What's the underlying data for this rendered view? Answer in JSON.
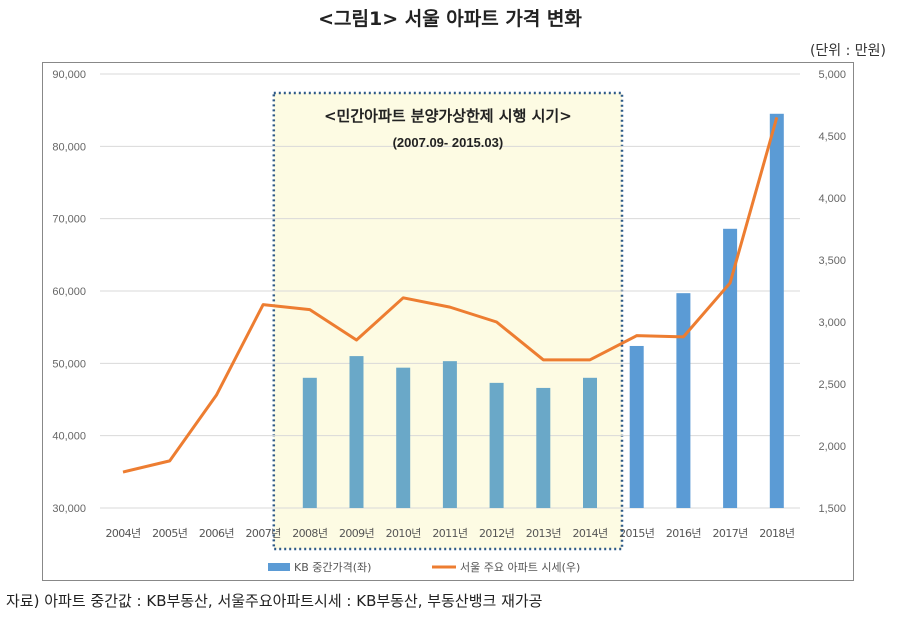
{
  "title": "<그림1> 서울 아파트 가격 변화",
  "unit": "(단위 : 만원)",
  "source": "자료) 아파트 중간값 : KB부동산, 서울주요아파트시세 : KB부동산, 부동산뱅크 재가공",
  "annotation": {
    "line1": "<민간아파트 분양가상한제 시행 시기>",
    "line2": "(2007.09- 2015.03)",
    "from_category": "2008년",
    "to_category": "2014년",
    "fill": "#fdfbe3",
    "border": "#2f5a87"
  },
  "chart_data": {
    "type": "bar+line",
    "categories": [
      "2004년",
      "2005년",
      "2006년",
      "2007년",
      "2008년",
      "2009년",
      "2010년",
      "2011년",
      "2012년",
      "2013년",
      "2014년",
      "2015년",
      "2016년",
      "2017년",
      "2018년"
    ],
    "series": [
      {
        "name": "KB 중간가격(좌)",
        "type": "bar",
        "axis": "left",
        "color": "#5b9bd5",
        "values": [
          null,
          null,
          null,
          null,
          48000,
          51000,
          49400,
          50300,
          47300,
          46600,
          48000,
          52400,
          59700,
          68600,
          84500
        ]
      },
      {
        "name": "서울 주요 아파트 시세(우)",
        "type": "line",
        "axis": "right",
        "color": "#ed7d31",
        "values": [
          1790,
          1880,
          2410,
          3140,
          3100,
          2855,
          3195,
          3120,
          3000,
          2695,
          2695,
          2890,
          2880,
          3315,
          4650
        ]
      }
    ],
    "left_axis": {
      "min": 30000,
      "max": 90000,
      "ticks": [
        "30,000",
        "40,000",
        "50,000",
        "60,000",
        "70,000",
        "80,000",
        "90,000"
      ]
    },
    "right_axis": {
      "min": 1500,
      "max": 5000,
      "ticks": [
        "1,500",
        "2,000",
        "2,500",
        "3,000",
        "3,500",
        "4,000",
        "4,500",
        "5,000"
      ]
    },
    "grid": true,
    "legend": "bottom"
  }
}
